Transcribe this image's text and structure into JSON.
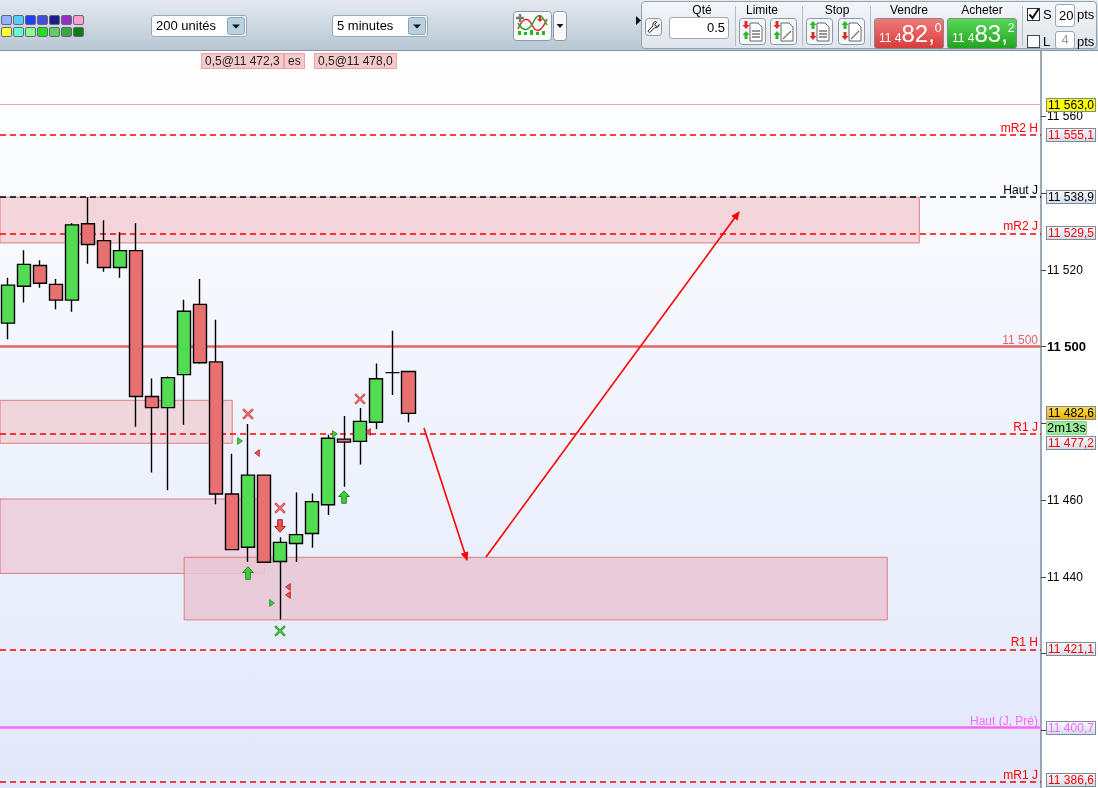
{
  "chart_data": {
    "type": "candlestick",
    "categories": [
      null,
      null,
      null,
      null,
      null,
      null,
      null,
      null,
      null,
      null,
      null,
      null,
      null,
      null,
      null,
      null,
      null,
      null,
      null,
      null,
      null,
      null,
      null,
      null,
      null,
      null,
      null,
      null,
      null,
      null,
      null,
      null,
      null,
      null,
      null,
      null,
      null,
      null,
      null,
      null,
      null,
      null,
      null,
      null,
      null,
      null,
      null,
      null,
      null,
      null,
      null,
      null,
      null,
      null,
      null,
      null,
      null,
      null,
      null,
      null,
      null,
      null,
      null,
      null,
      null
    ],
    "ohlc": [
      [
        11506.1,
        11517.9,
        11501.9,
        11516.0
      ],
      [
        11515.7,
        11525.1,
        11511.5,
        11521.4
      ],
      [
        11521.1,
        11522.5,
        11515.3,
        11516.5
      ],
      [
        11516.2,
        11517.6,
        11509.7,
        11512.1
      ],
      [
        11512.1,
        11532.1,
        11509.1,
        11531.7
      ],
      [
        11532.0,
        11538.9,
        11521.6,
        11526.6
      ],
      [
        11527.6,
        11532.9,
        11519.5,
        11520.6
      ],
      [
        11520.6,
        11529.8,
        11517.9,
        11525.0
      ],
      [
        11525.0,
        11532.1,
        11479.1,
        11487.0
      ],
      [
        11487.0,
        11491.7,
        11467.2,
        11484.1
      ],
      [
        11484.1,
        11492.2,
        11462.6,
        11491.9
      ],
      [
        11492.7,
        11512.2,
        11479.6,
        11509.2
      ],
      [
        11511.0,
        11517.6,
        11495.5,
        11495.8
      ],
      [
        11496.0,
        11507.0,
        11458.9,
        11461.6
      ],
      [
        11461.6,
        11472.1,
        11447.1,
        11447.1
      ],
      [
        11447.7,
        11479.8,
        11443.9,
        11466.5
      ],
      [
        11466.5,
        11466.5,
        11443.8,
        11443.8
      ],
      [
        11444.0,
        11450.3,
        11428.9,
        11449.0
      ],
      [
        11448.7,
        11462.0,
        11443.9,
        11451.0
      ],
      [
        11451.3,
        11461.7,
        11447.6,
        11459.6
      ],
      [
        11458.8,
        11477.0,
        11456.1,
        11476.1
      ],
      [
        11475.9,
        11481.9,
        11463.5,
        11475.1
      ],
      [
        11475.3,
        11484.0,
        11469.3,
        11480.5
      ],
      [
        11480.3,
        11495.6,
        11478.5,
        11491.6
      ],
      [
        11493.2,
        11504.1,
        11487.4,
        11493.2
      ],
      [
        11493.5,
        11493.5,
        11480.3,
        11482.6
      ],
      null,
      null,
      null,
      null,
      null,
      null,
      null,
      null,
      null,
      null,
      null,
      null,
      null,
      null,
      null,
      null,
      null,
      null,
      null,
      null,
      null,
      null,
      null,
      null,
      null,
      null,
      null,
      null,
      null,
      null,
      null,
      null,
      null,
      null,
      null,
      null,
      null,
      null,
      null
    ],
    "colors": [
      "#52dc52",
      "#52dc52",
      "#e87070",
      "#e87070",
      "#52dc52",
      "#e87070",
      "#e87070",
      "#52dc52",
      "#e87070",
      "#e87070",
      "#52dc52",
      "#52dc52",
      "#e87070",
      "#e87070",
      "#e87070",
      "#52dc52",
      "#e87070",
      "#52dc52",
      "#52dc52",
      "#52dc52",
      "#52dc52",
      "#e87070",
      "#52dc52",
      "#52dc52",
      "#000000",
      "#e87070",
      null,
      null,
      null,
      null,
      null,
      null,
      null,
      null,
      null,
      null,
      null,
      null,
      null,
      null,
      null,
      null,
      null,
      null,
      null,
      null,
      null,
      null,
      null,
      null,
      null,
      null,
      null,
      null,
      null,
      null,
      null,
      null,
      null,
      null,
      null,
      null,
      null,
      null,
      null
    ],
    "ylim": [
      11385,
      11577
    ],
    "yticks": [
      {
        "value": 11400,
        "label": null
      },
      {
        "value": 11420,
        "label": null
      },
      {
        "value": 11440,
        "label": "11 440"
      },
      {
        "value": 11460,
        "label": "11 460"
      },
      {
        "value": 11480,
        "label": null
      },
      {
        "value": 11500,
        "label": "11 500"
      },
      {
        "value": 11520,
        "label": "11 520"
      },
      {
        "value": 11540,
        "label": null
      },
      {
        "value": 11560,
        "label": "11 560"
      }
    ],
    "tick_labels": "y",
    "ref_lines": [
      {
        "axis": "y",
        "value": 11563.0,
        "color": "#f4a0a0",
        "line_style": "solid"
      },
      {
        "axis": "y",
        "value": 11555.1,
        "label": "mR2 H",
        "color": "#ff0000",
        "line_style": "dashed"
      },
      {
        "axis": "y",
        "value": 11538.9,
        "label": "Haut J",
        "color": "#000000",
        "line_style": "dashed"
      },
      {
        "axis": "y",
        "value": 11529.5,
        "label": "mR2 J",
        "color": "#ff0000",
        "line_style": "dashed"
      },
      {
        "axis": "y",
        "value": 11500,
        "label": "11 500",
        "color": "#e06666",
        "line_style": "solid"
      },
      {
        "axis": "y",
        "value": 11477.2,
        "label": "R1 J",
        "color": "#ff0000",
        "line_style": "dashed"
      },
      {
        "axis": "y",
        "value": 11421.1,
        "label": "R1 H",
        "color": "#ff0000",
        "line_style": "dashed"
      },
      {
        "axis": "y",
        "value": 11400.7,
        "label": "Haut (J, Pré)",
        "color": "#ff66ff",
        "line_style": "solid"
      },
      {
        "axis": "y",
        "value": 11386.6,
        "label": "mR1 J",
        "color": "#ff0000",
        "line_style": "dashed"
      }
    ],
    "bands": [
      {
        "axis": "y",
        "from": 11527.0,
        "to": 11538.9,
        "color": "#f2cfd5"
      },
      {
        "axis": "y",
        "from": 11474.8,
        "to": 11486.0,
        "color": "#efcfd6"
      },
      {
        "axis": "y",
        "from": 11440.9,
        "to": 11460.3,
        "color": "#ebcdd8"
      },
      {
        "axis": "y",
        "from": 11428.8,
        "to": 11445.1,
        "color": "#e9c6d3"
      }
    ],
    "annotations": [
      "11 563,0",
      "11 555,1",
      "11 538,9",
      "11 529,5",
      "11 482,6",
      "11 477,2",
      "11 421,1",
      "11 400,7",
      "11 386,6",
      "0,5@11 472,3",
      "es",
      "0,5@11 478,0",
      "2m13s",
      "200 unités",
      "5 minutes",
      "Qté",
      "0.5",
      "Limite",
      "Stop",
      "Vendre",
      "11 482,0",
      "Acheter",
      "11 483,2",
      "S",
      "20",
      "pts",
      "L",
      "4",
      "pts"
    ]
  }
}
